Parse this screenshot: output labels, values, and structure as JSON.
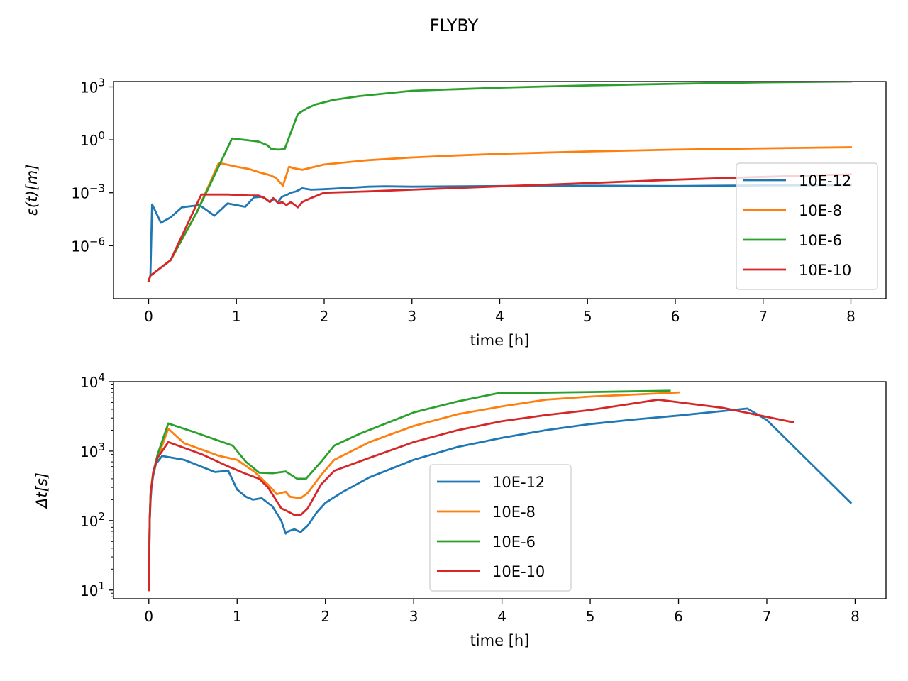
{
  "title": "FLYBY",
  "chart_data": [
    {
      "type": "line",
      "xlabel": "time [h]",
      "ylabel": "ε(t)[m]",
      "yscale": "log",
      "xlim": [
        -0.4,
        8.4
      ],
      "ylim": [
        1e-09,
        2000
      ],
      "xticks": [
        "0",
        "1",
        "2",
        "3",
        "4",
        "5",
        "6",
        "7",
        "8"
      ],
      "yticks": [
        {
          "value": 1e-06,
          "base": "10",
          "exp": "−6"
        },
        {
          "value": 0.001,
          "base": "10",
          "exp": "−3"
        },
        {
          "value": 1,
          "base": "10",
          "exp": "0"
        },
        {
          "value": 1000,
          "base": "10",
          "exp": "3"
        }
      ],
      "legend_position": "center-right",
      "series": [
        {
          "name": "10E-12",
          "color": "#1f77b4",
          "x": [
            0,
            0.02,
            0.04,
            0.14,
            0.25,
            0.38,
            0.58,
            0.75,
            0.9,
            1.1,
            1.2,
            1.3,
            1.38,
            1.43,
            1.47,
            1.52,
            1.56,
            1.62,
            1.68,
            1.75,
            1.85,
            2.0,
            2.2,
            2.5,
            2.7,
            3.0,
            4.0,
            5.0,
            6.0,
            7.0,
            8.0
          ],
          "y": [
            1e-08,
            2e-08,
            0.00022,
            2e-05,
            4e-05,
            0.00015,
            0.0002,
            5e-05,
            0.00025,
            0.00016,
            0.00055,
            0.0006,
            0.0003,
            0.00045,
            0.00028,
            0.0006,
            0.0007,
            0.001,
            0.0012,
            0.0018,
            0.0015,
            0.0016,
            0.0018,
            0.0022,
            0.0023,
            0.0022,
            0.0024,
            0.0025,
            0.0024,
            0.0026,
            0.0027
          ]
        },
        {
          "name": "10E-8",
          "color": "#ff7f0e",
          "x": [
            0,
            0.02,
            0.25,
            0.55,
            0.8,
            1.0,
            1.15,
            1.25,
            1.38,
            1.45,
            1.53,
            1.6,
            1.65,
            1.75,
            2.0,
            2.5,
            3.0,
            3.5,
            4.0,
            5.0,
            6.0,
            7.0,
            8.0
          ],
          "y": [
            1e-08,
            2e-08,
            1.5e-07,
            8e-05,
            0.05,
            0.03,
            0.022,
            0.015,
            0.01,
            0.007,
            0.0025,
            0.03,
            0.025,
            0.02,
            0.04,
            0.07,
            0.1,
            0.13,
            0.16,
            0.22,
            0.28,
            0.33,
            0.38
          ]
        },
        {
          "name": "10E-6",
          "color": "#2ca02c",
          "x": [
            0,
            0.02,
            0.25,
            0.55,
            0.95,
            1.25,
            1.35,
            1.4,
            1.48,
            1.55,
            1.7,
            1.8,
            1.9,
            2.1,
            2.4,
            3.0,
            4.0,
            5.0,
            6.0,
            7.0,
            8.0
          ],
          "y": [
            1e-08,
            2e-08,
            1.5e-07,
            8e-05,
            1.2,
            0.8,
            0.5,
            0.3,
            0.28,
            0.3,
            30,
            60,
            100,
            180,
            300,
            600,
            900,
            1200,
            1500,
            1800,
            2000
          ]
        },
        {
          "name": "10E-10",
          "color": "#d62728",
          "x": [
            0,
            0.02,
            0.25,
            0.6,
            0.9,
            1.15,
            1.25,
            1.32,
            1.38,
            1.42,
            1.48,
            1.52,
            1.57,
            1.62,
            1.7,
            1.75,
            1.85,
            2.0,
            2.5,
            3.0,
            4.0,
            5.0,
            6.0,
            7.0,
            8.0
          ],
          "y": [
            1e-08,
            2e-08,
            1.5e-07,
            0.0008,
            0.0008,
            0.0007,
            0.0007,
            0.0005,
            0.0003,
            0.0005,
            0.00025,
            0.0003,
            0.0002,
            0.0003,
            0.00015,
            0.0003,
            0.0005,
            0.001,
            0.0012,
            0.0015,
            0.0023,
            0.0035,
            0.0055,
            0.008,
            0.011
          ]
        }
      ]
    },
    {
      "type": "line",
      "xlabel": "time [h]",
      "ylabel": "Δt[s]",
      "yscale": "log",
      "xlim": [
        -0.4,
        8.35
      ],
      "ylim": [
        7.5,
        10000
      ],
      "xticks": [
        "0",
        "1",
        "2",
        "3",
        "4",
        "5",
        "6",
        "7",
        "8"
      ],
      "yticks": [
        {
          "value": 10,
          "base": "10",
          "exp": "1"
        },
        {
          "value": 100,
          "base": "10",
          "exp": "2"
        },
        {
          "value": 1000,
          "base": "10",
          "exp": "3"
        },
        {
          "value": 10000,
          "base": "10",
          "exp": "4"
        }
      ],
      "legend_position": "center",
      "series": [
        {
          "name": "10E-12",
          "color": "#1f77b4",
          "x": [
            0,
            0.005,
            0.01,
            0.02,
            0.03,
            0.05,
            0.08,
            0.15,
            0.4,
            0.75,
            0.9,
            1.0,
            1.1,
            1.18,
            1.28,
            1.4,
            1.5,
            1.55,
            1.58,
            1.65,
            1.72,
            1.8,
            1.9,
            2.0,
            2.2,
            2.5,
            3.0,
            3.5,
            4.0,
            4.5,
            5.0,
            5.5,
            6.0,
            6.78,
            7.0,
            7.95
          ],
          "y": [
            10,
            30,
            100,
            200,
            300,
            450,
            650,
            850,
            750,
            500,
            520,
            280,
            220,
            200,
            210,
            160,
            100,
            65,
            70,
            75,
            68,
            85,
            130,
            180,
            260,
            420,
            750,
            1150,
            1550,
            2000,
            2450,
            2850,
            3250,
            4100,
            2800,
            180
          ]
        },
        {
          "name": "10E-8",
          "color": "#ff7f0e",
          "x": [
            0,
            0.005,
            0.01,
            0.02,
            0.05,
            0.1,
            0.22,
            0.4,
            0.8,
            1.0,
            1.2,
            1.35,
            1.45,
            1.55,
            1.6,
            1.72,
            1.8,
            1.95,
            2.1,
            2.5,
            3.0,
            3.5,
            4.0,
            4.5,
            5.0,
            6.0
          ],
          "y": [
            10,
            30,
            100,
            250,
            500,
            800,
            2100,
            1300,
            850,
            750,
            500,
            330,
            240,
            260,
            220,
            210,
            250,
            450,
            750,
            1350,
            2300,
            3400,
            4400,
            5500,
            6100,
            7000
          ]
        },
        {
          "name": "10E-6",
          "color": "#2ca02c",
          "x": [
            0,
            0.005,
            0.01,
            0.02,
            0.05,
            0.1,
            0.22,
            0.5,
            0.95,
            1.1,
            1.25,
            1.4,
            1.55,
            1.68,
            1.78,
            1.95,
            2.1,
            2.4,
            3.0,
            3.5,
            3.95,
            5.0,
            5.9
          ],
          "y": [
            10,
            30,
            100,
            250,
            500,
            900,
            2500,
            1900,
            1200,
            700,
            490,
            480,
            510,
            400,
            400,
            700,
            1200,
            1800,
            3600,
            5200,
            6800,
            7100,
            7400
          ]
        },
        {
          "name": "10E-10",
          "color": "#d62728",
          "x": [
            0,
            0.005,
            0.01,
            0.02,
            0.05,
            0.1,
            0.22,
            0.6,
            0.9,
            1.1,
            1.25,
            1.35,
            1.45,
            1.5,
            1.55,
            1.6,
            1.65,
            1.72,
            1.8,
            1.95,
            2.1,
            2.5,
            3.0,
            3.5,
            4.0,
            4.5,
            5.0,
            5.77,
            6.5,
            7.3
          ],
          "y": [
            10,
            30,
            100,
            250,
            500,
            800,
            1350,
            900,
            600,
            470,
            400,
            300,
            190,
            150,
            140,
            130,
            120,
            120,
            150,
            330,
            520,
            800,
            1350,
            2000,
            2700,
            3300,
            3900,
            5500,
            4200,
            2600
          ]
        }
      ]
    }
  ]
}
